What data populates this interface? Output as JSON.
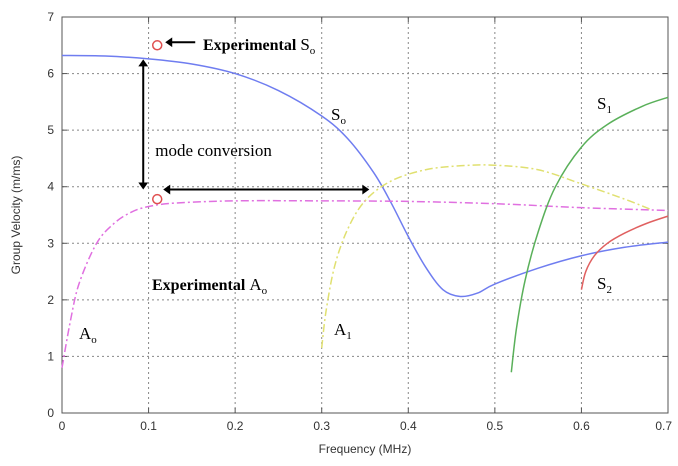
{
  "chart_data": {
    "type": "line",
    "title": "",
    "xlabel": "Frequency (MHz)",
    "ylabel": "Group Velocity (m/ms)",
    "xlim": [
      0,
      0.7
    ],
    "ylim": [
      0,
      7
    ],
    "x_ticks": [
      "0",
      "0.1",
      "0.2",
      "0.3",
      "0.4",
      "0.5",
      "0.6",
      "0.7"
    ],
    "y_ticks": [
      "0",
      "1",
      "2",
      "3",
      "4",
      "5",
      "6",
      "7"
    ],
    "grid": true,
    "series": [
      {
        "label": "S",
        "sub": "o",
        "color": "#6f7df0",
        "style": "solid",
        "points": [
          [
            0.0,
            6.32
          ],
          [
            0.05,
            6.31
          ],
          [
            0.1,
            6.26
          ],
          [
            0.15,
            6.17
          ],
          [
            0.2,
            6.0
          ],
          [
            0.25,
            5.7
          ],
          [
            0.3,
            5.25
          ],
          [
            0.33,
            4.85
          ],
          [
            0.36,
            4.25
          ],
          [
            0.38,
            3.72
          ],
          [
            0.4,
            3.12
          ],
          [
            0.42,
            2.58
          ],
          [
            0.44,
            2.18
          ],
          [
            0.46,
            2.06
          ],
          [
            0.48,
            2.12
          ],
          [
            0.5,
            2.28
          ],
          [
            0.55,
            2.56
          ],
          [
            0.6,
            2.78
          ],
          [
            0.65,
            2.93
          ],
          [
            0.7,
            3.02
          ]
        ]
      },
      {
        "label": "A",
        "sub": "o",
        "color": "#e070e0",
        "style": "dashdot",
        "points": [
          [
            0.0,
            0.8
          ],
          [
            0.01,
            1.65
          ],
          [
            0.02,
            2.3
          ],
          [
            0.04,
            3.0
          ],
          [
            0.06,
            3.35
          ],
          [
            0.08,
            3.55
          ],
          [
            0.1,
            3.65
          ],
          [
            0.13,
            3.71
          ],
          [
            0.2,
            3.75
          ],
          [
            0.3,
            3.75
          ],
          [
            0.4,
            3.74
          ],
          [
            0.5,
            3.7
          ],
          [
            0.6,
            3.63
          ],
          [
            0.7,
            3.58
          ]
        ]
      },
      {
        "label": "A",
        "sub": "1",
        "color": "#e0e070",
        "style": "dashdot",
        "points": [
          [
            0.3,
            1.15
          ],
          [
            0.305,
            1.8
          ],
          [
            0.315,
            2.6
          ],
          [
            0.33,
            3.25
          ],
          [
            0.35,
            3.75
          ],
          [
            0.38,
            4.1
          ],
          [
            0.42,
            4.3
          ],
          [
            0.46,
            4.37
          ],
          [
            0.5,
            4.38
          ],
          [
            0.55,
            4.3
          ],
          [
            0.6,
            4.05
          ],
          [
            0.65,
            3.78
          ],
          [
            0.68,
            3.6
          ]
        ]
      },
      {
        "label": "S",
        "sub": "1",
        "color": "#5ab05a",
        "style": "solid",
        "points": [
          [
            0.519,
            0.72
          ],
          [
            0.525,
            1.5
          ],
          [
            0.535,
            2.35
          ],
          [
            0.55,
            3.2
          ],
          [
            0.57,
            4.0
          ],
          [
            0.6,
            4.7
          ],
          [
            0.63,
            5.1
          ],
          [
            0.67,
            5.42
          ],
          [
            0.7,
            5.58
          ]
        ]
      },
      {
        "label": "S",
        "sub": "2",
        "color": "#e06060",
        "style": "solid",
        "points": [
          [
            0.6,
            2.18
          ],
          [
            0.605,
            2.5
          ],
          [
            0.615,
            2.78
          ],
          [
            0.63,
            3.0
          ],
          [
            0.65,
            3.18
          ],
          [
            0.675,
            3.35
          ],
          [
            0.7,
            3.48
          ]
        ]
      }
    ],
    "experimental_points": [
      {
        "label": "Experimental S",
        "sub": "o",
        "x": 0.11,
        "y": 6.5
      },
      {
        "label": "Experimental A",
        "sub": "o",
        "x": 0.11,
        "y": 3.78
      }
    ],
    "annotations": {
      "mode_conversion": "mode conversion"
    }
  }
}
